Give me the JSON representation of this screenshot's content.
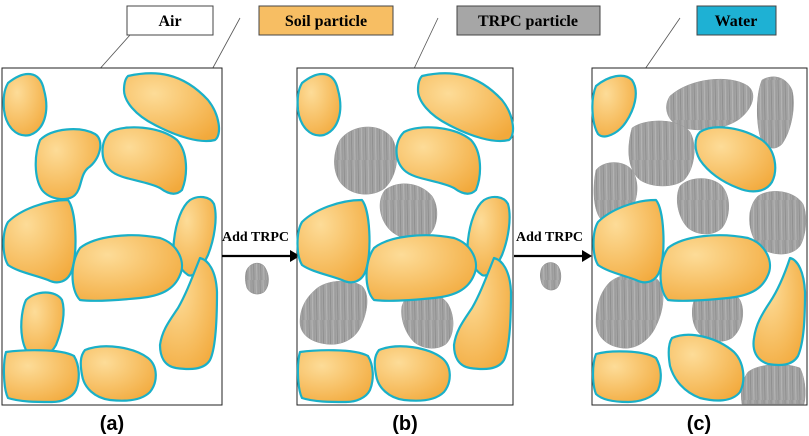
{
  "legend": {
    "air": "Air",
    "soil": "Soil particle",
    "trpc": "TRPC particle",
    "water": "Water"
  },
  "arrows": {
    "first": "Add TRPC",
    "second": "Add TRPC"
  },
  "panels": {
    "a": "(a)",
    "b": "(b)",
    "c": "(c)"
  },
  "colors": {
    "soil_fill_light": "#FDD992",
    "soil_fill_dark": "#F2A93B",
    "soil_outline": "#1AB0C8",
    "trpc_fill": "#A3A3A3",
    "trpc_legend_fill": "#A6A6A6",
    "water_fill": "#1EB1D4",
    "soil_legend_fill": "#F7BE63",
    "frame": "#222222"
  }
}
